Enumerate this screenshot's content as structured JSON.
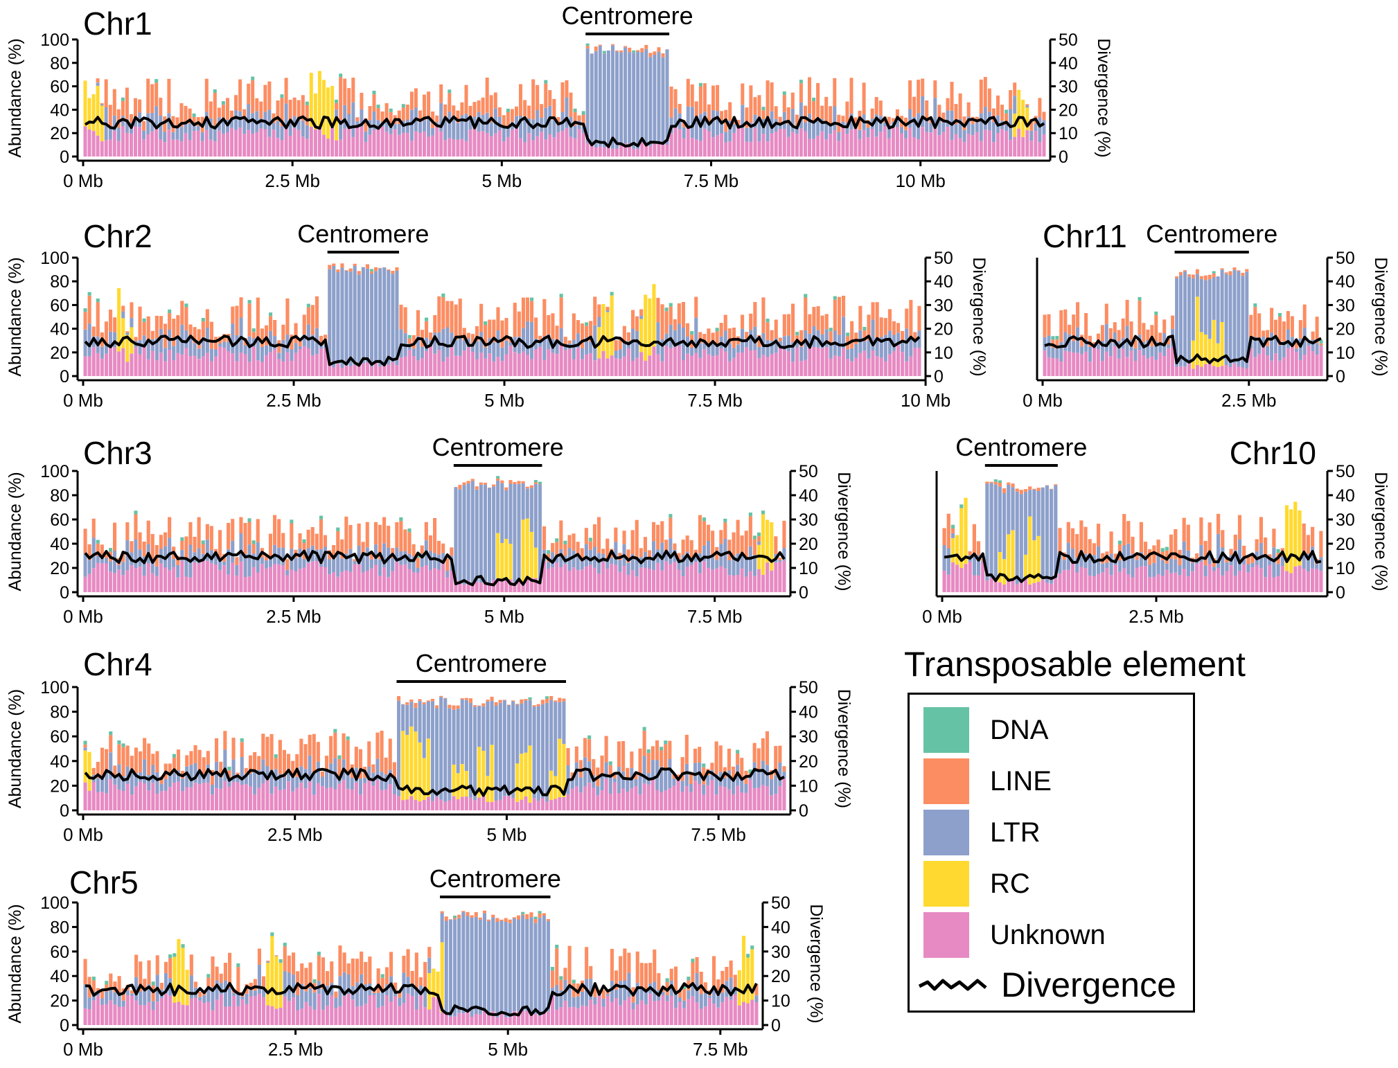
{
  "legend": {
    "title": "Transposable element",
    "items": [
      {
        "label": "DNA",
        "color": "#66c2a5"
      },
      {
        "label": "LINE",
        "color": "#fc8d62"
      },
      {
        "label": "LTR",
        "color": "#8da0cb"
      },
      {
        "label": "RC",
        "color": "#ffd92f"
      },
      {
        "label": "Unknown",
        "color": "#e78ac3"
      }
    ],
    "line_label": "Divergence"
  },
  "chart_data": [
    {
      "type": "bar",
      "title": "Chr1",
      "annotation": "Centromere",
      "centromere_mb": [
        6.0,
        7.0
      ],
      "length_mb": 11.5,
      "x_ticks": [
        "0 Mb",
        "2.5 Mb",
        "5 Mb",
        "7.5 Mb",
        "10 Mb"
      ],
      "x_tick_values": [
        0,
        2.5,
        5,
        7.5,
        10
      ],
      "ylabel": "Abundance (%)",
      "y2label": "Divergence (%)",
      "ylim": [
        0,
        100
      ],
      "y2lim": [
        0,
        50
      ],
      "y_ticks": [
        0,
        20,
        40,
        60,
        80,
        100
      ],
      "y2_ticks": [
        0,
        10,
        20,
        30,
        40,
        50
      ],
      "stacked_series_order": [
        "Unknown",
        "RC",
        "LTR",
        "LINE",
        "DNA"
      ],
      "rc_peaks_mb": [
        0.12,
        2.8,
        2.95,
        11.2
      ],
      "approx_total_pct_outside": 48,
      "approx_total_pct_centromere": 96,
      "divergence_pct_outside": 15,
      "divergence_pct_centromere": 6
    },
    {
      "type": "bar",
      "title": "Chr2",
      "annotation": "Centromere",
      "centromere_mb": [
        2.9,
        3.75
      ],
      "length_mb": 9.95,
      "x_ticks": [
        "0 Mb",
        "2.5 Mb",
        "5 Mb",
        "7.5 Mb",
        "10 Mb"
      ],
      "x_tick_values": [
        0,
        2.5,
        5,
        7.5,
        10
      ],
      "ylabel": "Abundance (%)",
      "y2label": "Divergence (%)",
      "ylim": [
        0,
        100
      ],
      "y2lim": [
        0,
        50
      ],
      "y_ticks": [
        0,
        20,
        40,
        60,
        80,
        100
      ],
      "y2_ticks": [
        0,
        10,
        20,
        30,
        40,
        50
      ],
      "rc_peaks_mb": [
        0.5,
        6.2,
        6.7
      ],
      "approx_total_pct_outside": 48,
      "approx_total_pct_centromere": 96,
      "divergence_pct_outside": 15,
      "divergence_pct_centromere": 6
    },
    {
      "type": "bar",
      "title": "Chr11",
      "annotation": "Centromere",
      "centromere_mb": [
        1.6,
        2.5
      ],
      "length_mb": 3.4,
      "x_ticks": [
        "0 Mb",
        "2.5 Mb"
      ],
      "x_tick_values": [
        0,
        2.5
      ],
      "ylabel": "",
      "y2label": "Divergence (%)",
      "ylim": [
        0,
        100
      ],
      "y2lim": [
        0,
        50
      ],
      "y_ticks": [],
      "y2_ticks": [
        0,
        10,
        20,
        30,
        40,
        50
      ],
      "rc_peaks_mb": [
        1.9,
        2.1
      ],
      "approx_total_pct_outside": 45,
      "approx_total_pct_centromere": 92,
      "divergence_pct_outside": 15,
      "divergence_pct_centromere": 7
    },
    {
      "type": "bar",
      "title": "Chr3",
      "annotation": "Centromere",
      "centromere_mb": [
        4.4,
        5.45
      ],
      "length_mb": 8.35,
      "x_ticks": [
        "0 Mb",
        "2.5 Mb",
        "5 Mb",
        "7.5 Mb"
      ],
      "x_tick_values": [
        0,
        2.5,
        5,
        7.5
      ],
      "ylabel": "Abundance (%)",
      "y2label": "Divergence (%)",
      "ylim": [
        0,
        100
      ],
      "y2lim": [
        0,
        50
      ],
      "y_ticks": [
        0,
        20,
        40,
        60,
        80,
        100
      ],
      "y2_ticks": [
        0,
        10,
        20,
        30,
        40,
        50
      ],
      "rc_peaks_mb": [
        5.0,
        5.3,
        8.1
      ],
      "approx_total_pct_outside": 45,
      "approx_total_pct_centromere": 94,
      "divergence_pct_outside": 15,
      "divergence_pct_centromere": 5
    },
    {
      "type": "bar",
      "title": "Chr10",
      "annotation": "Centromere",
      "centromere_mb": [
        0.5,
        1.35
      ],
      "length_mb": 4.45,
      "x_ticks": [
        "0 Mb",
        "2.5 Mb"
      ],
      "x_tick_values": [
        0,
        2.5
      ],
      "ylabel": "",
      "y2label": "Divergence (%)",
      "ylim": [
        0,
        100
      ],
      "y2lim": [
        0,
        50
      ],
      "y_ticks": [],
      "y2_ticks": [
        0,
        10,
        20,
        30,
        40,
        50
      ],
      "rc_peaks_mb": [
        0.2,
        0.75,
        1.05,
        4.1
      ],
      "approx_total_pct_outside": 45,
      "approx_total_pct_centromere": 92,
      "divergence_pct_outside": 15,
      "divergence_pct_centromere": 6
    },
    {
      "type": "bar",
      "title": "Chr4",
      "annotation": "Centromere",
      "centromere_mb": [
        3.7,
        5.7
      ],
      "length_mb": 8.3,
      "x_ticks": [
        "0 Mb",
        "2.5 Mb",
        "5 Mb",
        "7.5 Mb"
      ],
      "x_tick_values": [
        0,
        2.5,
        5,
        7.5
      ],
      "ylabel": "Abundance (%)",
      "y2label": "Divergence (%)",
      "ylim": [
        0,
        100
      ],
      "y2lim": [
        0,
        50
      ],
      "y_ticks": [
        0,
        20,
        40,
        60,
        80,
        100
      ],
      "y2_ticks": [
        0,
        10,
        20,
        30,
        40,
        50
      ],
      "rc_peaks_mb": [
        0.0,
        3.85,
        4.0,
        4.45,
        4.75,
        5.2,
        5.6
      ],
      "approx_total_pct_outside": 45,
      "approx_total_pct_centromere": 93,
      "divergence_pct_outside": 15,
      "divergence_pct_centromere": 8
    },
    {
      "type": "bar",
      "title": "Chr5",
      "annotation": "Centromere",
      "centromere_mb": [
        4.2,
        5.5
      ],
      "length_mb": 7.95,
      "x_ticks": [
        "0 Mb",
        "2.5 Mb",
        "5 Mb",
        "7.5 Mb"
      ],
      "x_tick_values": [
        0,
        2.5,
        5,
        7.5
      ],
      "ylabel": "Abundance (%)",
      "y2label": "Divergence (%)",
      "ylim": [
        0,
        100
      ],
      "y2lim": [
        0,
        50
      ],
      "y_ticks": [
        0,
        20,
        40,
        60,
        80,
        100
      ],
      "y2_ticks": [
        0,
        10,
        20,
        30,
        40,
        50
      ],
      "rc_peaks_mb": [
        1.15,
        2.25,
        4.15,
        7.8
      ],
      "approx_total_pct_outside": 45,
      "approx_total_pct_centromere": 94,
      "divergence_pct_outside": 15,
      "divergence_pct_centromere": 6
    }
  ]
}
